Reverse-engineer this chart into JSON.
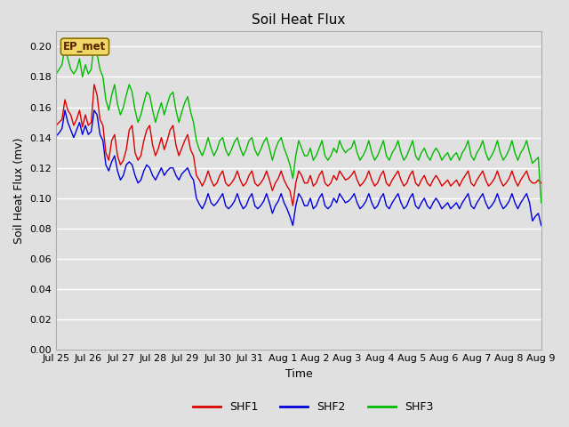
{
  "title": "Soil Heat Flux",
  "xlabel": "Time",
  "ylabel": "Soil Heat Flux (mv)",
  "ylim": [
    0.0,
    0.21
  ],
  "yticks": [
    0.0,
    0.02,
    0.04,
    0.06,
    0.08,
    0.1,
    0.12,
    0.14,
    0.16,
    0.18,
    0.2
  ],
  "background_color": "#e0e0e0",
  "plot_bg_color": "#e0e0e0",
  "legend_label": "EP_met",
  "x_tick_labels": [
    "Jul 25",
    "Jul 26",
    "Jul 27",
    "Jul 28",
    "Jul 29",
    "Jul 30",
    "Jul 31",
    "Aug 1",
    "Aug 2",
    "Aug 3",
    "Aug 4",
    "Aug 5",
    "Aug 6",
    "Aug 7",
    "Aug 8",
    "Aug 9"
  ],
  "shf1_color": "#dd0000",
  "shf2_color": "#0000dd",
  "shf3_color": "#00bb00",
  "shf1": [
    0.148,
    0.15,
    0.152,
    0.165,
    0.158,
    0.155,
    0.148,
    0.152,
    0.158,
    0.147,
    0.155,
    0.148,
    0.15,
    0.175,
    0.168,
    0.152,
    0.148,
    0.13,
    0.125,
    0.138,
    0.142,
    0.128,
    0.122,
    0.125,
    0.132,
    0.145,
    0.148,
    0.13,
    0.125,
    0.128,
    0.138,
    0.145,
    0.148,
    0.135,
    0.128,
    0.133,
    0.14,
    0.132,
    0.138,
    0.145,
    0.148,
    0.135,
    0.128,
    0.133,
    0.138,
    0.142,
    0.132,
    0.128,
    0.115,
    0.112,
    0.108,
    0.112,
    0.118,
    0.112,
    0.108,
    0.11,
    0.115,
    0.118,
    0.11,
    0.108,
    0.11,
    0.113,
    0.118,
    0.112,
    0.108,
    0.11,
    0.115,
    0.118,
    0.11,
    0.108,
    0.11,
    0.113,
    0.118,
    0.112,
    0.105,
    0.11,
    0.113,
    0.118,
    0.112,
    0.108,
    0.105,
    0.095,
    0.11,
    0.118,
    0.115,
    0.11,
    0.11,
    0.115,
    0.108,
    0.11,
    0.115,
    0.118,
    0.11,
    0.108,
    0.11,
    0.115,
    0.112,
    0.118,
    0.115,
    0.112,
    0.113,
    0.115,
    0.118,
    0.112,
    0.108,
    0.11,
    0.113,
    0.118,
    0.112,
    0.108,
    0.11,
    0.115,
    0.118,
    0.11,
    0.108,
    0.112,
    0.115,
    0.118,
    0.112,
    0.108,
    0.11,
    0.115,
    0.118,
    0.11,
    0.108,
    0.112,
    0.115,
    0.11,
    0.108,
    0.112,
    0.115,
    0.112,
    0.108,
    0.11,
    0.112,
    0.108,
    0.11,
    0.112,
    0.108,
    0.112,
    0.115,
    0.118,
    0.11,
    0.108,
    0.112,
    0.115,
    0.118,
    0.112,
    0.108,
    0.11,
    0.113,
    0.118,
    0.112,
    0.108,
    0.11,
    0.113,
    0.118,
    0.112,
    0.108,
    0.112,
    0.115,
    0.118,
    0.112,
    0.11,
    0.11,
    0.112,
    0.11
  ],
  "shf2": [
    0.141,
    0.143,
    0.146,
    0.158,
    0.15,
    0.145,
    0.14,
    0.145,
    0.15,
    0.142,
    0.148,
    0.142,
    0.144,
    0.158,
    0.155,
    0.142,
    0.138,
    0.122,
    0.118,
    0.124,
    0.128,
    0.118,
    0.112,
    0.115,
    0.122,
    0.124,
    0.122,
    0.115,
    0.11,
    0.112,
    0.118,
    0.122,
    0.12,
    0.115,
    0.112,
    0.116,
    0.12,
    0.115,
    0.118,
    0.12,
    0.12,
    0.115,
    0.112,
    0.116,
    0.118,
    0.12,
    0.115,
    0.112,
    0.1,
    0.096,
    0.093,
    0.097,
    0.103,
    0.097,
    0.095,
    0.097,
    0.1,
    0.103,
    0.095,
    0.093,
    0.095,
    0.098,
    0.103,
    0.097,
    0.093,
    0.095,
    0.1,
    0.103,
    0.095,
    0.093,
    0.095,
    0.098,
    0.103,
    0.097,
    0.09,
    0.095,
    0.098,
    0.103,
    0.097,
    0.093,
    0.088,
    0.082,
    0.095,
    0.103,
    0.1,
    0.095,
    0.095,
    0.1,
    0.093,
    0.095,
    0.1,
    0.103,
    0.095,
    0.093,
    0.095,
    0.1,
    0.097,
    0.103,
    0.1,
    0.097,
    0.098,
    0.1,
    0.103,
    0.097,
    0.093,
    0.095,
    0.098,
    0.103,
    0.097,
    0.093,
    0.095,
    0.1,
    0.103,
    0.095,
    0.093,
    0.097,
    0.1,
    0.103,
    0.097,
    0.093,
    0.095,
    0.1,
    0.103,
    0.095,
    0.093,
    0.097,
    0.1,
    0.095,
    0.093,
    0.097,
    0.1,
    0.097,
    0.093,
    0.095,
    0.097,
    0.093,
    0.095,
    0.097,
    0.093,
    0.097,
    0.1,
    0.103,
    0.095,
    0.093,
    0.097,
    0.1,
    0.103,
    0.097,
    0.093,
    0.095,
    0.098,
    0.103,
    0.097,
    0.093,
    0.095,
    0.098,
    0.103,
    0.097,
    0.093,
    0.097,
    0.1,
    0.103,
    0.097,
    0.085,
    0.088,
    0.09,
    0.082
  ],
  "shf3": [
    0.182,
    0.185,
    0.188,
    0.2,
    0.192,
    0.185,
    0.182,
    0.185,
    0.192,
    0.18,
    0.188,
    0.182,
    0.185,
    0.202,
    0.195,
    0.185,
    0.18,
    0.165,
    0.158,
    0.168,
    0.175,
    0.162,
    0.155,
    0.16,
    0.168,
    0.175,
    0.17,
    0.158,
    0.15,
    0.155,
    0.163,
    0.17,
    0.168,
    0.158,
    0.15,
    0.157,
    0.163,
    0.155,
    0.162,
    0.168,
    0.17,
    0.158,
    0.15,
    0.157,
    0.163,
    0.167,
    0.157,
    0.15,
    0.138,
    0.132,
    0.128,
    0.133,
    0.14,
    0.133,
    0.128,
    0.132,
    0.138,
    0.14,
    0.132,
    0.128,
    0.132,
    0.137,
    0.14,
    0.133,
    0.128,
    0.132,
    0.138,
    0.14,
    0.132,
    0.128,
    0.132,
    0.137,
    0.14,
    0.133,
    0.125,
    0.132,
    0.137,
    0.14,
    0.133,
    0.128,
    0.122,
    0.113,
    0.128,
    0.138,
    0.133,
    0.128,
    0.128,
    0.133,
    0.125,
    0.128,
    0.133,
    0.138,
    0.128,
    0.125,
    0.128,
    0.133,
    0.13,
    0.138,
    0.133,
    0.13,
    0.132,
    0.133,
    0.138,
    0.13,
    0.125,
    0.128,
    0.132,
    0.138,
    0.13,
    0.125,
    0.128,
    0.133,
    0.138,
    0.128,
    0.125,
    0.13,
    0.133,
    0.138,
    0.13,
    0.125,
    0.128,
    0.133,
    0.138,
    0.128,
    0.125,
    0.13,
    0.133,
    0.128,
    0.125,
    0.13,
    0.133,
    0.13,
    0.125,
    0.128,
    0.13,
    0.125,
    0.128,
    0.13,
    0.125,
    0.13,
    0.133,
    0.138,
    0.128,
    0.125,
    0.13,
    0.133,
    0.138,
    0.13,
    0.125,
    0.128,
    0.132,
    0.138,
    0.13,
    0.125,
    0.128,
    0.132,
    0.138,
    0.13,
    0.125,
    0.13,
    0.133,
    0.138,
    0.13,
    0.123,
    0.125,
    0.127,
    0.097
  ]
}
